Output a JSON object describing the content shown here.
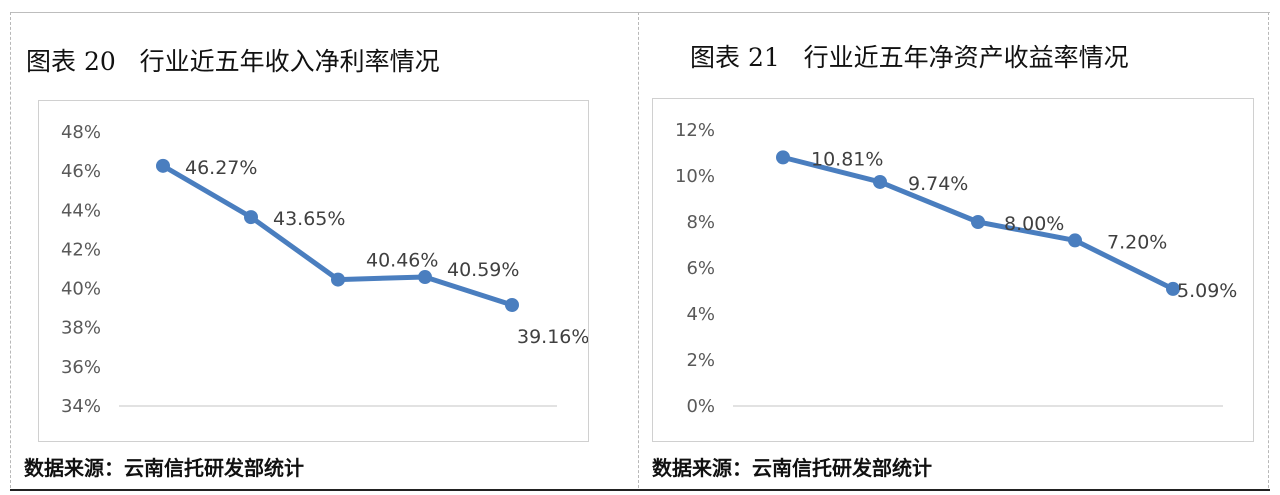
{
  "left_panel": {
    "title": "图表 20   行业近五年收入净利率情况",
    "source": "数据来源：云南信托研发部统计"
  },
  "right_panel": {
    "title": "图表 21   行业近五年净资产收益率情况",
    "source": "数据来源：云南信托研发部统计"
  },
  "colors": {
    "line": "#4a7ebf",
    "grid": "#d9d9d9",
    "tick": "#595959"
  },
  "chart_data": [
    {
      "type": "line",
      "title": "行业近五年收入净利率情况",
      "x": [
        1,
        2,
        3,
        4,
        5
      ],
      "values": [
        46.27,
        43.65,
        40.46,
        40.59,
        39.16
      ],
      "data_labels": [
        "46.27%",
        "43.65%",
        "40.46%",
        "40.59%",
        "39.16%"
      ],
      "ylim": [
        34,
        48
      ],
      "yticks": [
        "48%",
        "46%",
        "44%",
        "42%",
        "40%",
        "38%",
        "36%",
        "34%"
      ],
      "grid": false
    },
    {
      "type": "line",
      "title": "行业近五年净资产收益率情况",
      "x": [
        1,
        2,
        3,
        4,
        5
      ],
      "values": [
        10.81,
        9.74,
        8.0,
        7.2,
        5.09
      ],
      "data_labels": [
        "10.81%",
        "9.74%",
        "8.00%",
        "7.20%",
        "5.09%"
      ],
      "ylim": [
        0,
        12
      ],
      "yticks": [
        "12%",
        "10%",
        "8%",
        "6%",
        "4%",
        "2%",
        "0%"
      ],
      "grid": false
    }
  ]
}
